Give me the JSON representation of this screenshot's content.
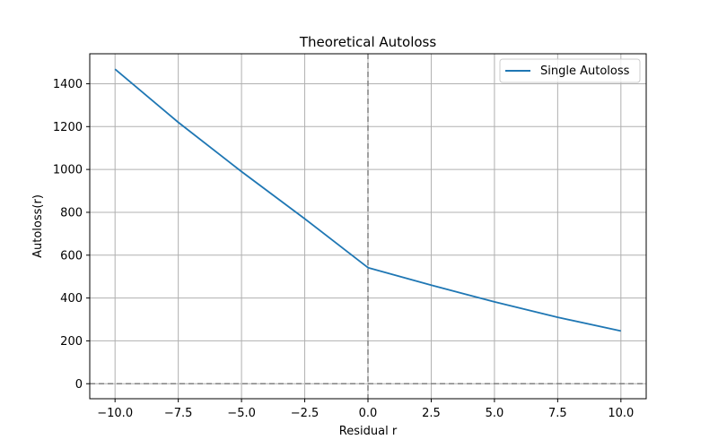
{
  "chart_data": {
    "type": "line",
    "title": "Theoretical Autoloss",
    "xlabel": "Residual r",
    "ylabel": "Autoloss(r)",
    "xlim": [
      -11,
      11
    ],
    "ylim": [
      -70,
      1540
    ],
    "x_ticks": [
      -10,
      -7.5,
      -5,
      -2.5,
      0,
      2.5,
      5,
      7.5,
      10
    ],
    "x_tick_labels": [
      "−10.0",
      "−7.5",
      "−5.0",
      "−2.5",
      "0.0",
      "2.5",
      "5.0",
      "7.5",
      "10.0"
    ],
    "y_ticks": [
      0,
      200,
      400,
      600,
      800,
      1000,
      1200,
      1400
    ],
    "y_tick_labels": [
      "0",
      "200",
      "400",
      "600",
      "800",
      "1000",
      "1200",
      "1400"
    ],
    "grid": true,
    "reference_lines": {
      "x_zero": true,
      "y_zero": true
    },
    "legend": {
      "position": "top-right",
      "entries": [
        "Single Autoloss"
      ]
    },
    "series": [
      {
        "name": "Single Autoloss",
        "color": "#1f77b4",
        "x": [
          -10,
          -7.5,
          -5,
          -2.5,
          0,
          2.5,
          5,
          7.5,
          10
        ],
        "y": [
          1468,
          1220,
          990,
          770,
          542,
          460,
          382,
          310,
          246
        ]
      }
    ]
  }
}
